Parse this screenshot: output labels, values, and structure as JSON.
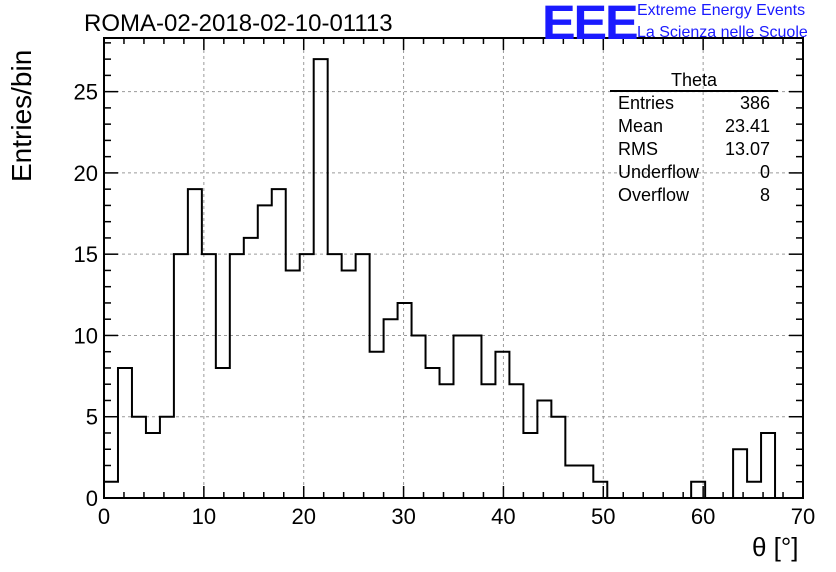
{
  "title": "ROMA-02-2018-02-10-01113",
  "logo": {
    "mark": "EEE",
    "line1": "Extreme Energy Events",
    "line2": "La Scienza nelle Scuole",
    "color": "#1a1aff"
  },
  "stats": {
    "name": "Theta",
    "rows": [
      {
        "label": "Entries",
        "value": "386"
      },
      {
        "label": "Mean",
        "value": "23.41"
      },
      {
        "label": "RMS",
        "value": "13.07"
      },
      {
        "label": "Underflow",
        "value": "0"
      },
      {
        "label": "Overflow",
        "value": "8"
      }
    ]
  },
  "chart_data": {
    "type": "bar",
    "style": "step-histogram",
    "xlabel": "θ [°]",
    "ylabel": "Entries/bin",
    "xlim": [
      0,
      70
    ],
    "ylim": [
      0,
      28.3
    ],
    "bin_width": 1.4,
    "x_ticks": [
      0,
      10,
      20,
      30,
      40,
      50,
      60,
      70
    ],
    "y_ticks": [
      0,
      5,
      10,
      15,
      20,
      25
    ],
    "grid": true,
    "line_color": "#000000",
    "grid_color": "#9a9a9a",
    "values": [
      1,
      8,
      5,
      4,
      5,
      15,
      19,
      15,
      8,
      15,
      16,
      18,
      19,
      14,
      15,
      27,
      15,
      14,
      15,
      9,
      11,
      12,
      10,
      8,
      7,
      10,
      10,
      7,
      9,
      7,
      4,
      6,
      5,
      2,
      2,
      1,
      0,
      0,
      0,
      0,
      0,
      0,
      1,
      0,
      0,
      3,
      1,
      4,
      0,
      0
    ]
  }
}
